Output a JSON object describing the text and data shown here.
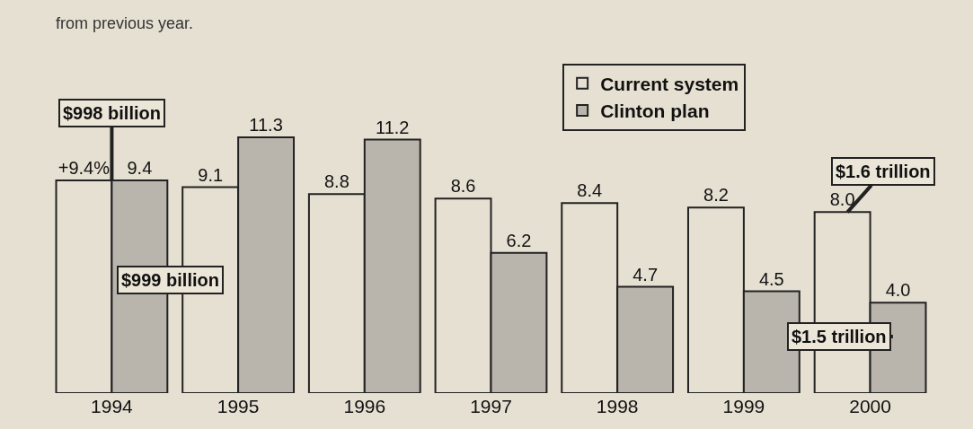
{
  "chart_data": {
    "type": "bar",
    "subtitle": "from previous year.",
    "categories": [
      "1994",
      "1995",
      "1996",
      "1997",
      "1998",
      "1999",
      "2000"
    ],
    "series": [
      {
        "name": "Current system",
        "color": "#e6e0d2",
        "values": [
          9.4,
          9.1,
          8.8,
          8.6,
          8.4,
          8.2,
          8.0
        ],
        "value_labels": [
          "+9.4%",
          "9.1",
          "8.8",
          "8.6",
          "8.4",
          "8.2",
          "8.0"
        ]
      },
      {
        "name": "Clinton plan",
        "color": "#b9b5ac",
        "values": [
          9.4,
          11.3,
          11.2,
          6.2,
          4.7,
          4.5,
          4.0
        ],
        "value_labels": [
          "9.4",
          "11.3",
          "11.2",
          "6.2",
          "4.7",
          "4.5",
          "4.0"
        ]
      }
    ],
    "legend": "top right",
    "annotations": [
      {
        "text": "$998 billion",
        "x": "1994",
        "y": 9.4
      },
      {
        "text": "$999 billion",
        "x": "1994",
        "y": 5
      },
      {
        "text": "$1.6 trillion",
        "x": "2000",
        "y": 8.0
      },
      {
        "text": "$1.5 trillion",
        "x": "2000",
        "y": 2.5
      }
    ]
  }
}
